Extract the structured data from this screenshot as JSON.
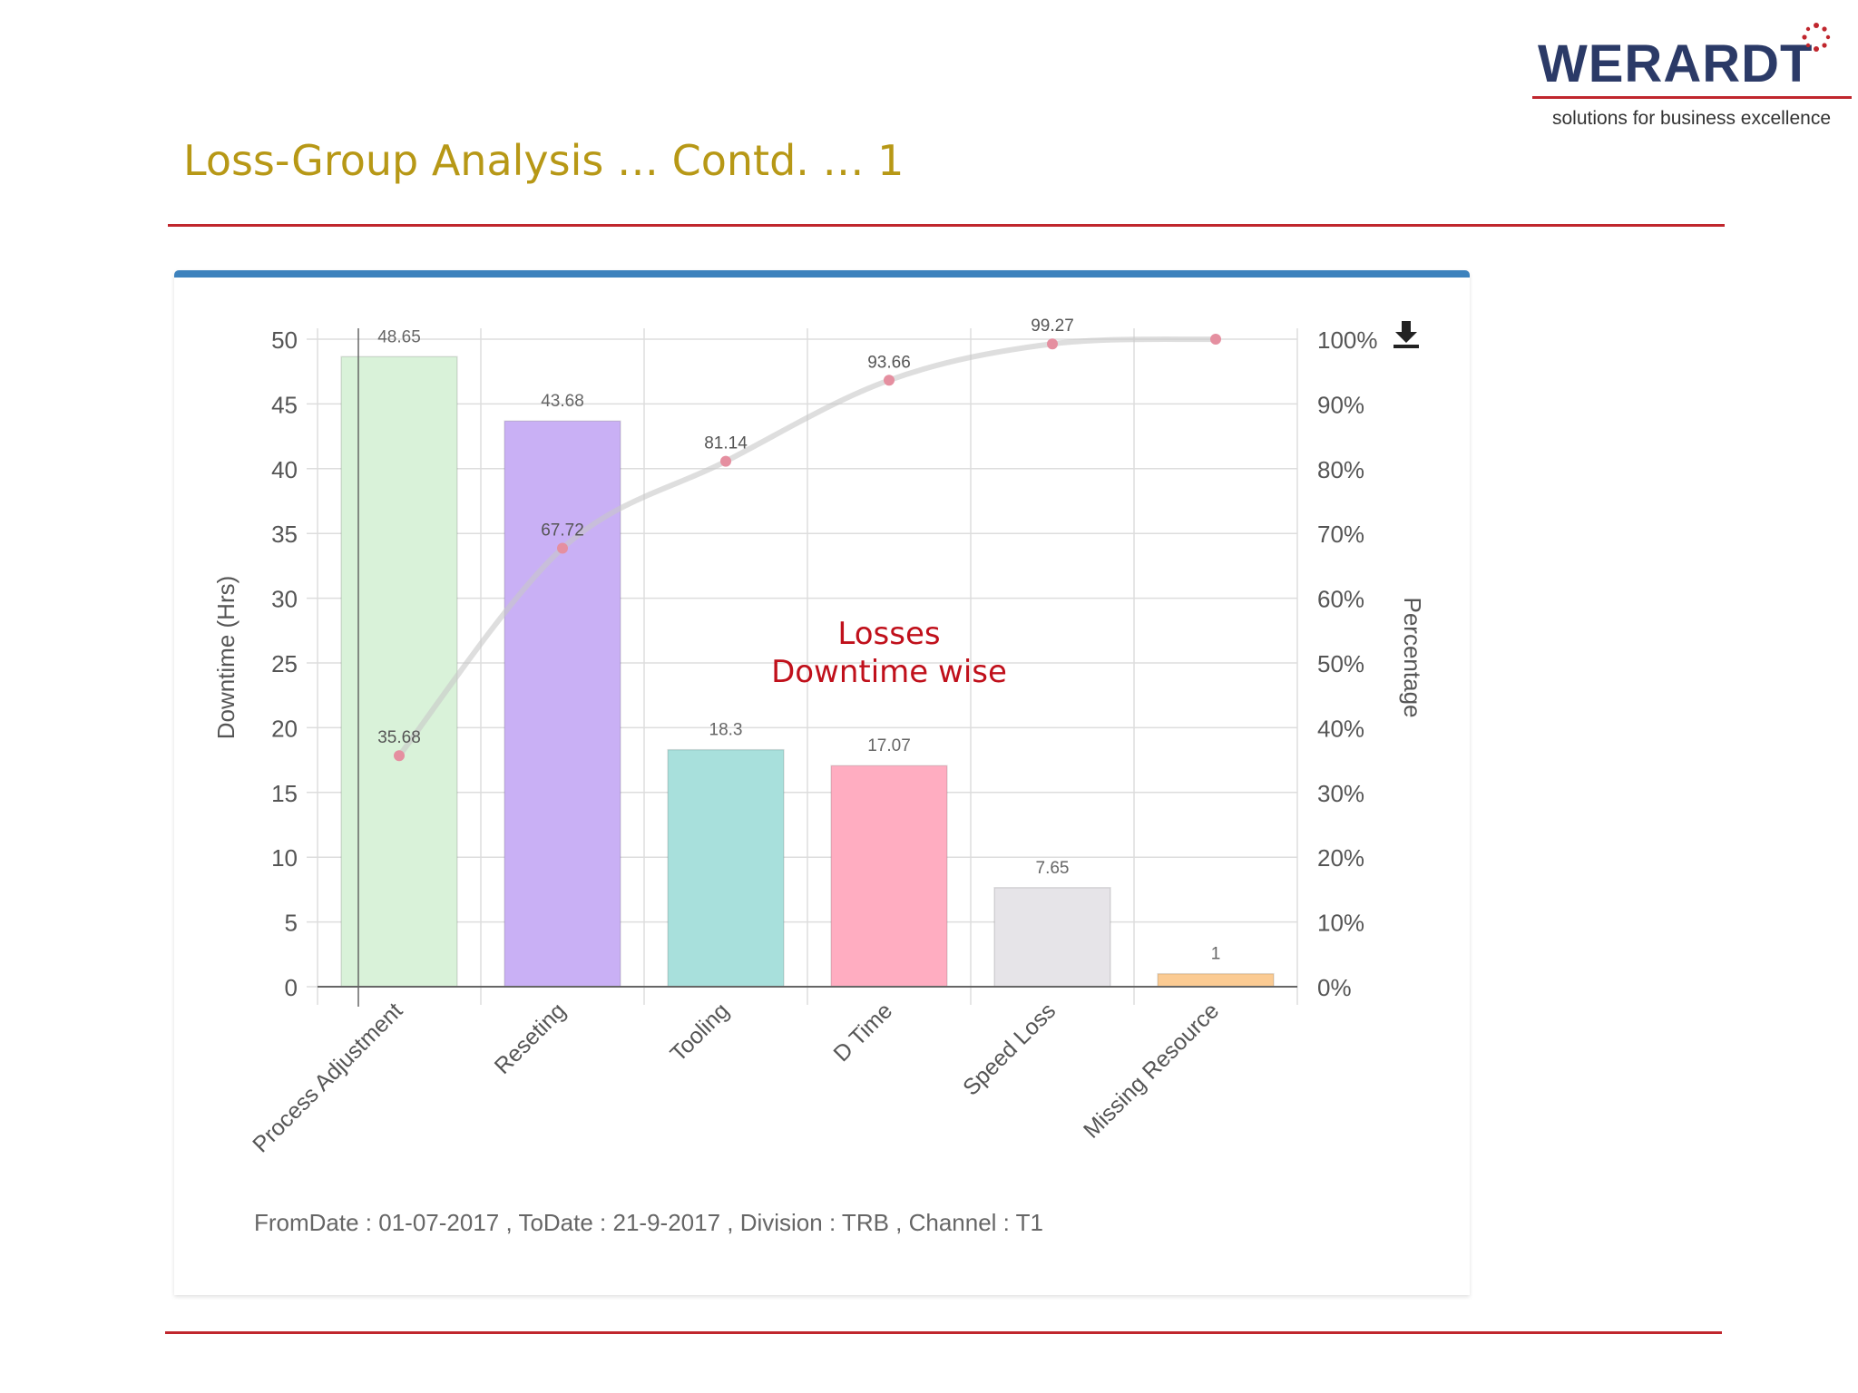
{
  "brand": {
    "name": "WERARDT",
    "tagline": "solutions for business excellence",
    "colors": {
      "navy": "#2b3a67",
      "red": "#c0262d"
    }
  },
  "page": {
    "title": "Loss-Group Analysis … Contd. … 1",
    "title_color": "#b79816"
  },
  "toolbar": {
    "download_icon": "download-icon"
  },
  "chart_data": {
    "type": "bar",
    "categories": [
      "Process Adjustment",
      "Reseting",
      "Tooling",
      "D Time",
      "Speed Loss",
      "Missing Resource"
    ],
    "series": [
      {
        "type": "bar",
        "axis": "left",
        "values": [
          48.65,
          43.68,
          18.3,
          17.07,
          7.65,
          1
        ],
        "colors": [
          "#d9f2d9",
          "#c9b0f5",
          "#a8e0dc",
          "#ffadc1",
          "#e6e4e8",
          "#fbcb93"
        ]
      },
      {
        "type": "line",
        "axis": "right",
        "values": [
          35.68,
          67.72,
          81.14,
          93.66,
          99.27,
          100
        ],
        "labels": [
          "35.68",
          "67.72",
          "81.14",
          "93.66",
          "99.27",
          ""
        ],
        "color": "#e58fa0"
      }
    ],
    "ylabel": "Downtime (Hrs)",
    "y2label": "Percentage",
    "ylim": [
      0,
      50
    ],
    "yticks": [
      0,
      5,
      10,
      15,
      20,
      25,
      30,
      35,
      40,
      45,
      50
    ],
    "y2lim": [
      0,
      100
    ],
    "y2ticks": [
      "0%",
      "10%",
      "20%",
      "30%",
      "40%",
      "50%",
      "60%",
      "70%",
      "80%",
      "90%",
      "100%"
    ],
    "annotation": [
      "Losses",
      "Downtime wise"
    ],
    "grid": true
  },
  "footer": {
    "text": "FromDate : 01-07-2017 , ToDate : 21-9-2017 , Division : TRB , Channel : T1"
  }
}
